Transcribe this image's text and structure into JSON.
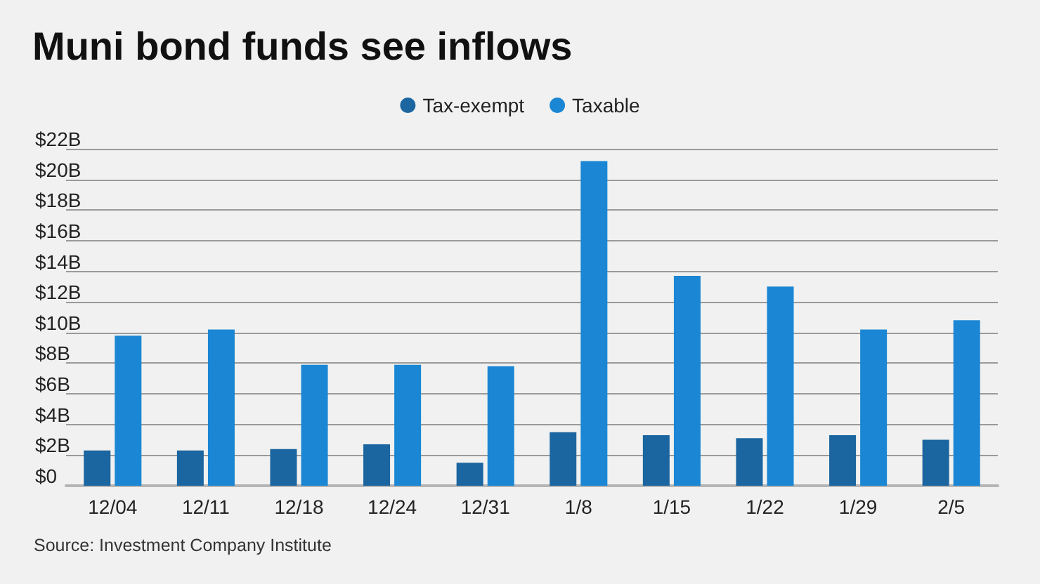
{
  "chart_data": {
    "type": "bar",
    "title": "Muni bond funds see inflows",
    "categories": [
      "12/04",
      "12/11",
      "12/18",
      "12/24",
      "12/31",
      "1/8",
      "1/15",
      "1/22",
      "1/29",
      "2/5"
    ],
    "series": [
      {
        "name": "Tax-exempt",
        "color": "#1b65a0",
        "values": [
          2.3,
          2.3,
          2.4,
          2.7,
          1.5,
          3.5,
          3.3,
          3.1,
          3.3,
          3.0
        ]
      },
      {
        "name": "Taxable",
        "color": "#1a86d4",
        "values": [
          9.8,
          10.2,
          7.9,
          7.9,
          7.8,
          21.2,
          13.7,
          13.0,
          10.2,
          10.8
        ]
      }
    ],
    "ylim": [
      0,
      22
    ],
    "yticks": [
      {
        "value": 0,
        "label": "$0"
      },
      {
        "value": 2,
        "label": "$2B"
      },
      {
        "value": 4,
        "label": "$4B"
      },
      {
        "value": 6,
        "label": "$6B"
      },
      {
        "value": 8,
        "label": "$8B"
      },
      {
        "value": 10,
        "label": "$10B"
      },
      {
        "value": 12,
        "label": "$12B"
      },
      {
        "value": 14,
        "label": "$14B"
      },
      {
        "value": 16,
        "label": "$16B"
      },
      {
        "value": 18,
        "label": "$18B"
      },
      {
        "value": 20,
        "label": "$20B"
      },
      {
        "value": 22,
        "label": "$22B"
      }
    ],
    "grid": "y",
    "legend": "top",
    "annotations": [
      "Source: Investment Company Institute"
    ]
  }
}
